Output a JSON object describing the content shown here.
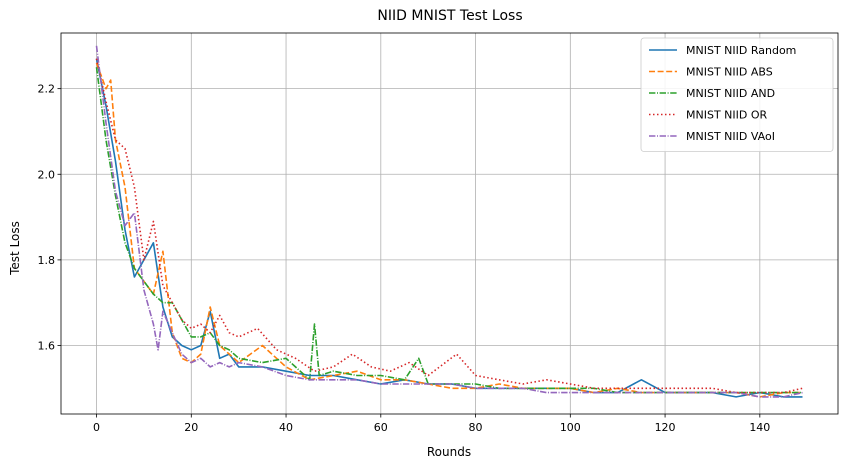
{
  "chart_data": {
    "type": "line",
    "title": "NIID MNIST Test Loss",
    "xlabel": "Rounds",
    "ylabel": "Test Loss",
    "xlim": [
      -7.5,
      156.5
    ],
    "ylim": [
      1.44,
      2.33
    ],
    "xticks": [
      "0",
      "20",
      "40",
      "60",
      "80",
      "100",
      "120",
      "140"
    ],
    "yticks": [
      "1.6",
      "1.8",
      "2.0",
      "2.2"
    ],
    "grid": true,
    "legend_position": "top-right",
    "series": [
      {
        "name": "MNIST NIID Random",
        "color": "#1f77b4",
        "dash": "solid",
        "x": [
          0,
          2,
          4,
          6,
          8,
          10,
          12,
          14,
          16,
          18,
          20,
          22,
          24,
          26,
          28,
          30,
          35,
          40,
          45,
          50,
          55,
          60,
          65,
          70,
          75,
          80,
          85,
          90,
          95,
          100,
          105,
          110,
          115,
          120,
          125,
          130,
          135,
          140,
          145,
          149
        ],
        "y": [
          2.27,
          2.16,
          2.03,
          1.87,
          1.76,
          1.8,
          1.84,
          1.69,
          1.62,
          1.6,
          1.59,
          1.6,
          1.68,
          1.57,
          1.58,
          1.55,
          1.55,
          1.54,
          1.53,
          1.53,
          1.52,
          1.51,
          1.52,
          1.51,
          1.51,
          1.5,
          1.5,
          1.5,
          1.5,
          1.5,
          1.49,
          1.49,
          1.52,
          1.49,
          1.49,
          1.49,
          1.48,
          1.49,
          1.48,
          1.48
        ]
      },
      {
        "name": "MNIST NIID ABS",
        "color": "#ff7f0e",
        "dash": "dashed",
        "x": [
          0,
          2,
          3,
          4,
          6,
          8,
          10,
          12,
          14,
          16,
          18,
          20,
          22,
          24,
          26,
          28,
          30,
          35,
          40,
          45,
          50,
          55,
          60,
          65,
          70,
          75,
          80,
          85,
          90,
          95,
          100,
          105,
          110,
          115,
          120,
          125,
          130,
          135,
          140,
          145,
          149
        ],
        "y": [
          2.26,
          2.2,
          2.22,
          2.08,
          1.97,
          1.78,
          1.75,
          1.72,
          1.82,
          1.63,
          1.57,
          1.56,
          1.58,
          1.69,
          1.6,
          1.58,
          1.56,
          1.6,
          1.55,
          1.52,
          1.53,
          1.54,
          1.52,
          1.52,
          1.51,
          1.5,
          1.5,
          1.51,
          1.5,
          1.5,
          1.5,
          1.49,
          1.5,
          1.49,
          1.49,
          1.49,
          1.49,
          1.49,
          1.48,
          1.49,
          1.49
        ]
      },
      {
        "name": "MNIST NIID AND",
        "color": "#2ca02c",
        "dash": "dashdot",
        "x": [
          0,
          2,
          4,
          6,
          8,
          10,
          12,
          14,
          16,
          18,
          20,
          22,
          24,
          26,
          28,
          30,
          35,
          40,
          45,
          46,
          47,
          50,
          55,
          60,
          65,
          68,
          70,
          75,
          80,
          85,
          90,
          95,
          100,
          105,
          110,
          115,
          120,
          125,
          130,
          135,
          140,
          145,
          149
        ],
        "y": [
          2.25,
          2.08,
          1.95,
          1.84,
          1.78,
          1.75,
          1.72,
          1.7,
          1.7,
          1.66,
          1.62,
          1.62,
          1.63,
          1.6,
          1.59,
          1.57,
          1.56,
          1.57,
          1.52,
          1.65,
          1.53,
          1.54,
          1.53,
          1.53,
          1.52,
          1.57,
          1.51,
          1.51,
          1.51,
          1.5,
          1.5,
          1.5,
          1.5,
          1.5,
          1.49,
          1.49,
          1.49,
          1.49,
          1.49,
          1.49,
          1.49,
          1.49,
          1.49
        ]
      },
      {
        "name": "MNIST NIID OR",
        "color": "#d62728",
        "dash": "dotted",
        "x": [
          0,
          2,
          4,
          6,
          8,
          10,
          12,
          14,
          16,
          18,
          20,
          22,
          24,
          26,
          28,
          30,
          34,
          38,
          42,
          46,
          50,
          54,
          58,
          62,
          66,
          70,
          76,
          80,
          85,
          90,
          95,
          100,
          105,
          110,
          115,
          120,
          125,
          130,
          135,
          140,
          145,
          149
        ],
        "y": [
          2.27,
          2.17,
          2.08,
          2.06,
          1.97,
          1.8,
          1.89,
          1.74,
          1.7,
          1.66,
          1.64,
          1.65,
          1.63,
          1.67,
          1.63,
          1.62,
          1.64,
          1.59,
          1.57,
          1.54,
          1.55,
          1.58,
          1.55,
          1.54,
          1.56,
          1.53,
          1.58,
          1.53,
          1.52,
          1.51,
          1.52,
          1.51,
          1.5,
          1.5,
          1.5,
          1.5,
          1.5,
          1.5,
          1.49,
          1.49,
          1.49,
          1.5
        ]
      },
      {
        "name": "MNIST NIID VAoI",
        "color": "#9467bd",
        "dash": "dashdot",
        "x": [
          0,
          2,
          4,
          6,
          8,
          10,
          12,
          13,
          14,
          16,
          18,
          20,
          22,
          24,
          26,
          28,
          30,
          35,
          40,
          45,
          50,
          55,
          60,
          65,
          70,
          75,
          80,
          85,
          90,
          95,
          100,
          105,
          110,
          115,
          120,
          125,
          130,
          135,
          140,
          145,
          149
        ],
        "y": [
          2.3,
          2.12,
          1.96,
          1.88,
          1.91,
          1.73,
          1.65,
          1.59,
          1.68,
          1.63,
          1.58,
          1.56,
          1.57,
          1.55,
          1.56,
          1.55,
          1.56,
          1.55,
          1.53,
          1.52,
          1.52,
          1.52,
          1.51,
          1.51,
          1.51,
          1.51,
          1.5,
          1.5,
          1.5,
          1.49,
          1.49,
          1.49,
          1.49,
          1.49,
          1.49,
          1.49,
          1.49,
          1.49,
          1.48,
          1.48,
          1.49
        ]
      }
    ]
  }
}
